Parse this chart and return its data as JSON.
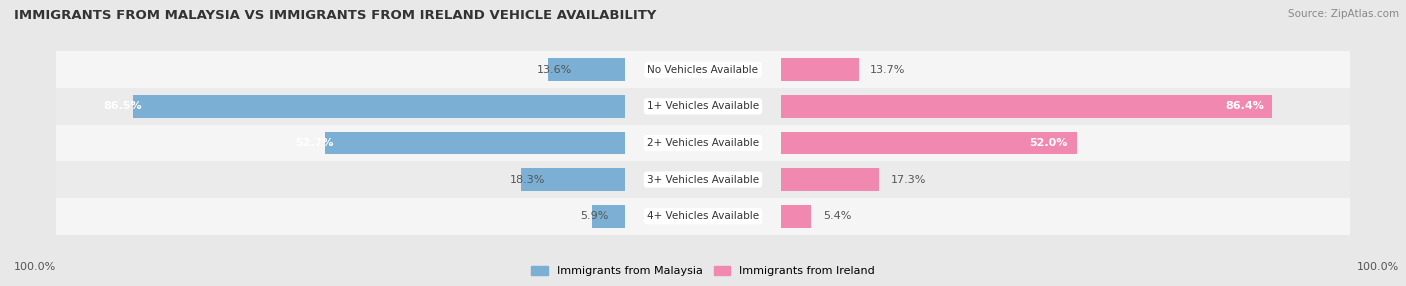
{
  "title": "IMMIGRANTS FROM MALAYSIA VS IMMIGRANTS FROM IRELAND VEHICLE AVAILABILITY",
  "source": "Source: ZipAtlas.com",
  "categories": [
    "No Vehicles Available",
    "1+ Vehicles Available",
    "2+ Vehicles Available",
    "3+ Vehicles Available",
    "4+ Vehicles Available"
  ],
  "malaysia_values": [
    13.6,
    86.5,
    52.7,
    18.3,
    5.9
  ],
  "ireland_values": [
    13.7,
    86.4,
    52.0,
    17.3,
    5.4
  ],
  "malaysia_color": "#7bafd4",
  "ireland_color": "#f088b0",
  "malaysia_label": "Immigrants from Malaysia",
  "ireland_label": "Immigrants from Ireland",
  "max_value": 100.0,
  "bg_color": "#e8e8e8",
  "row_bg_even": "#f5f5f5",
  "row_bg_odd": "#ebebeb",
  "title_color": "#333333",
  "value_color_outside": "#555555",
  "value_color_inside": "#ffffff",
  "footer_label": "100.0%",
  "bar_height": 0.62,
  "inside_threshold": 25
}
